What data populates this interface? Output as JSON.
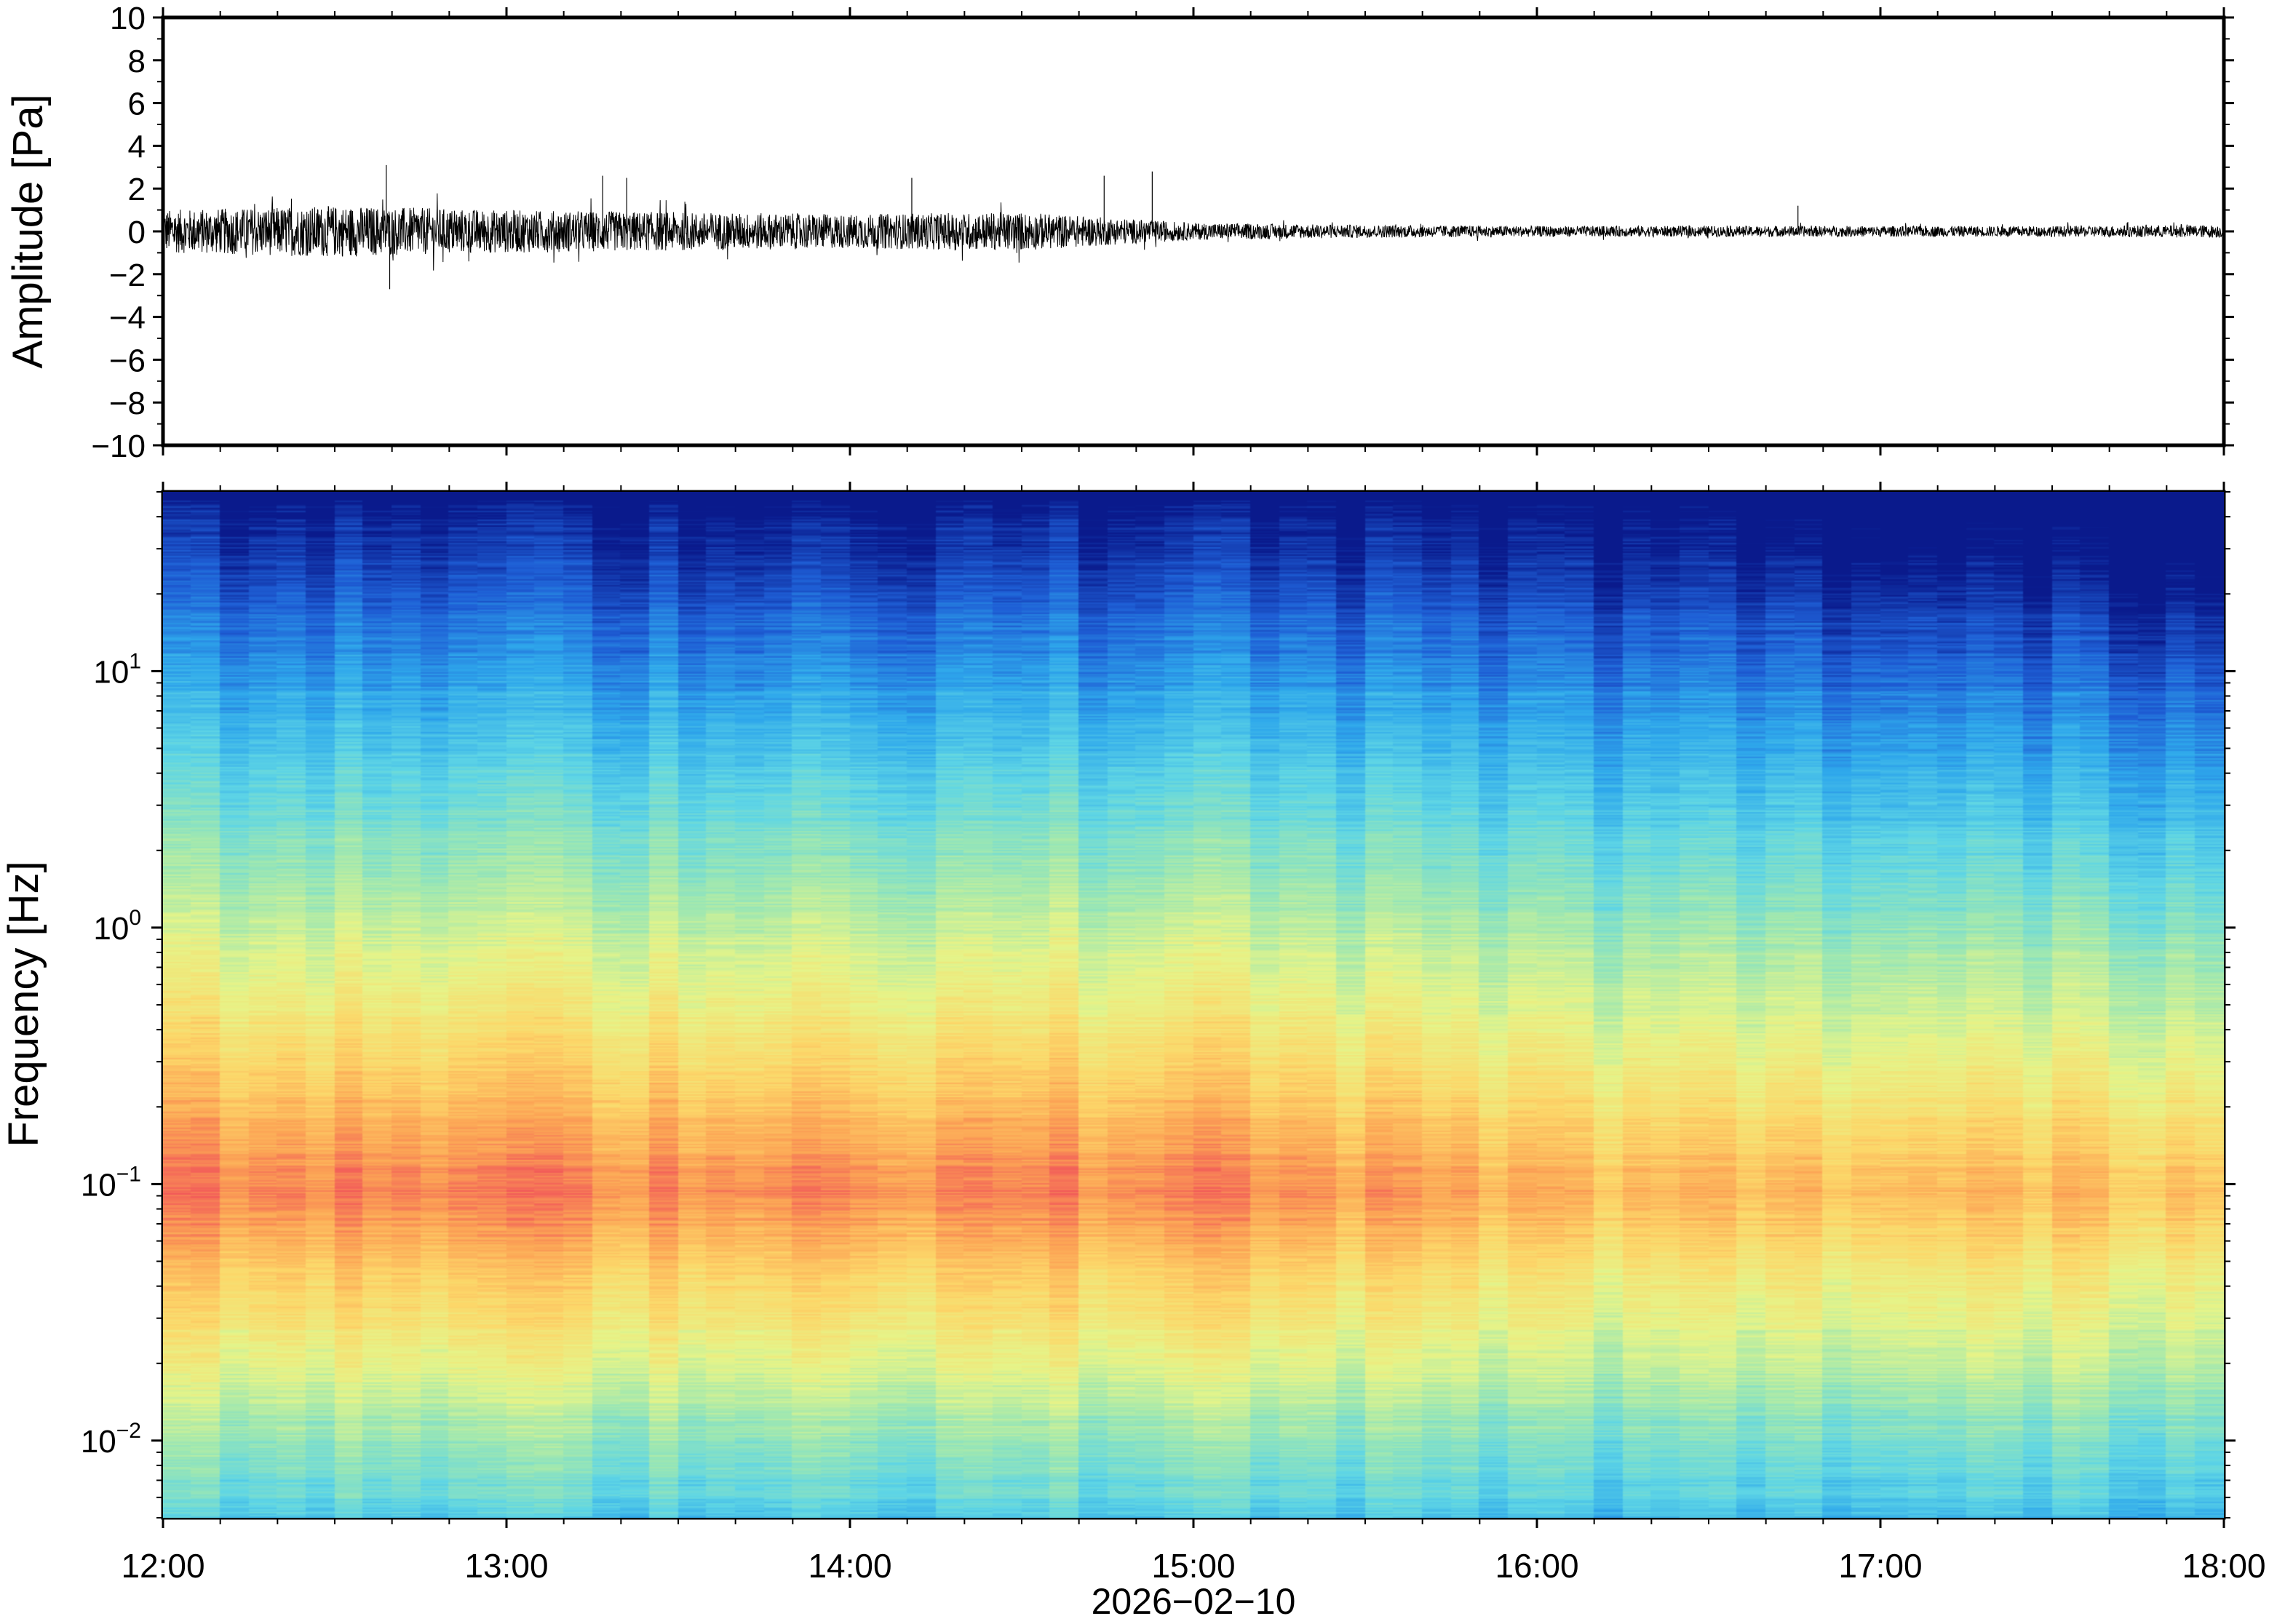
{
  "chart_data": [
    {
      "type": "line",
      "panel": "waveform",
      "ylabel": "Amplitude [Pa]",
      "ylim": [
        -10,
        10
      ],
      "yticks": [
        10,
        8,
        6,
        4,
        2,
        0,
        -2,
        -4,
        -6,
        -8,
        -10
      ],
      "ytick_labels": [
        "10",
        "8",
        "6",
        "4",
        "2",
        "0",
        "−2",
        "−4",
        "−6",
        "−8",
        "−10"
      ],
      "xlim": [
        "12:00",
        "18:00"
      ],
      "envelope": {
        "description_hours": [
          12.0,
          12.5,
          13.0,
          13.5,
          14.0,
          14.5,
          15.0,
          15.5,
          16.0,
          16.5,
          17.0,
          17.5,
          18.0
        ],
        "half_range_pa": [
          1.0,
          1.2,
          1.0,
          0.9,
          0.8,
          0.9,
          0.4,
          0.3,
          0.25,
          0.25,
          0.25,
          0.25,
          0.3
        ]
      },
      "spikes": [
        {
          "time_h": 12.65,
          "value": 3.1
        },
        {
          "time_h": 12.66,
          "value": -2.7
        },
        {
          "time_h": 13.28,
          "value": 2.6
        },
        {
          "time_h": 13.35,
          "value": 2.5
        },
        {
          "time_h": 14.18,
          "value": 2.5
        },
        {
          "time_h": 14.74,
          "value": 2.6
        },
        {
          "time_h": 14.88,
          "value": 2.8
        },
        {
          "time_h": 16.76,
          "value": 1.2
        }
      ],
      "line_color": "#000000"
    },
    {
      "type": "heatmap",
      "panel": "spectrogram",
      "ylabel": "Frequency [Hz]",
      "yscale": "log",
      "ylim": [
        0.005,
        50
      ],
      "yticks": [
        0.01,
        0.1,
        1,
        10
      ],
      "ytick_labels": [
        {
          "base": "10",
          "exp": "−2"
        },
        {
          "base": "10",
          "exp": "−1"
        },
        {
          "base": "10",
          "exp": "0"
        },
        {
          "base": "10",
          "exp": "1"
        }
      ],
      "colormap": "jet-like",
      "colormap_stops": [
        "#0a1a8c",
        "#1f5fd6",
        "#2fa8ec",
        "#5fd6e6",
        "#9fe8b2",
        "#e6f58a",
        "#fdd86a",
        "#fca355",
        "#f2555a"
      ],
      "peak_band_hz": [
        0.03,
        0.3
      ],
      "trend": "stronger low-frequency energy before 15:00, weaker after"
    }
  ],
  "x_axis": {
    "tick_labels": [
      "12:00",
      "13:00",
      "14:00",
      "15:00",
      "16:00",
      "17:00",
      "18:00"
    ],
    "date_label": "2026−02−10",
    "range_hours": [
      12,
      18
    ]
  }
}
